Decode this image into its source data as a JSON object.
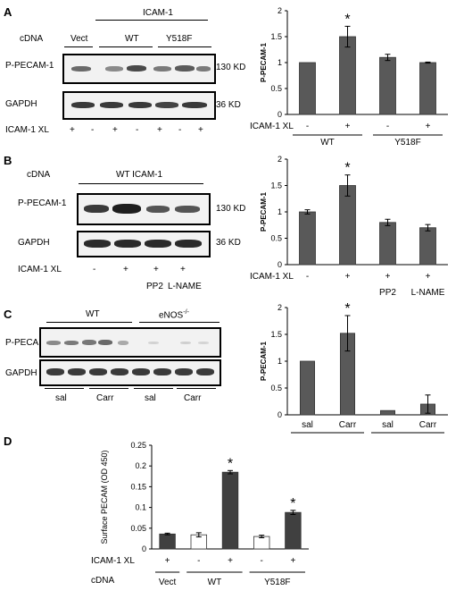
{
  "panels": {
    "A": {
      "letter": "A",
      "cdna_label": "cDNA",
      "icam_header": "ICAM-1",
      "groups": [
        "Vect",
        "WT",
        "Y518F"
      ],
      "rows": [
        "P-PECAM-1",
        "GAPDH"
      ],
      "sizes": [
        "130 KD",
        "36 KD"
      ],
      "xl_label": "ICAM-1 XL",
      "xl_signs": [
        "+",
        "-",
        "+",
        "-",
        "+",
        "-",
        "+"
      ]
    },
    "B": {
      "letter": "B",
      "cdna_label": "cDNA",
      "header": "WT ICAM-1",
      "rows": [
        "P-PECAM-1",
        "GAPDH"
      ],
      "sizes": [
        "130 KD",
        "36 KD"
      ],
      "xl_label": "ICAM-1 XL",
      "xl_signs": [
        "-",
        "+",
        "+",
        "+"
      ],
      "treatments": [
        "PP2",
        "L-NAME"
      ]
    },
    "C": {
      "letter": "C",
      "groups": [
        "WT",
        "eNOS"
      ],
      "superscript": "-/-",
      "rows": [
        "P-PECAM",
        "GAPDH"
      ],
      "lane_groups": [
        "sal",
        "Carr",
        "sal",
        "Carr"
      ]
    },
    "D": {
      "letter": "D"
    }
  },
  "chart_data": [
    {
      "id": "A",
      "type": "bar",
      "ylabel": "P-PECAM-1",
      "ylim": [
        0,
        2
      ],
      "yticks": [
        "0",
        "0.5",
        "1",
        "1.5",
        "2"
      ],
      "values": [
        1.0,
        1.5,
        1.1,
        1.0
      ],
      "errors": [
        0,
        0.2,
        0.06,
        0.01
      ],
      "significant": [
        false,
        true,
        false,
        false
      ],
      "xl_label": "ICAM-1 XL",
      "xl_signs": [
        "-",
        "+",
        "-",
        "+"
      ],
      "groups": [
        "WT",
        "Y518F"
      ],
      "bar_color": "#595959",
      "asterisk": "*"
    },
    {
      "id": "B",
      "type": "bar",
      "ylabel": "P-PECAM-1",
      "ylim": [
        0,
        2
      ],
      "yticks": [
        "0",
        "0.5",
        "1",
        "1.5",
        "2"
      ],
      "values": [
        1.0,
        1.5,
        0.8,
        0.7
      ],
      "errors": [
        0.04,
        0.2,
        0.06,
        0.06
      ],
      "significant": [
        false,
        true,
        false,
        false
      ],
      "xl_label": "ICAM-1 XL",
      "xl_signs": [
        "-",
        "+",
        "+",
        "+"
      ],
      "treatments": [
        "",
        "",
        "PP2",
        "L-NAME"
      ],
      "bar_color": "#595959",
      "asterisk": "*"
    },
    {
      "id": "C",
      "type": "bar",
      "ylabel": "P-PECAM-1",
      "ylim": [
        0,
        2
      ],
      "yticks": [
        "0",
        "0.5",
        "1",
        "1.5",
        "2"
      ],
      "categories": [
        "sal",
        "Carr",
        "sal",
        "Carr"
      ],
      "values": [
        1.0,
        1.52,
        0.08,
        0.2
      ],
      "errors": [
        0,
        0.33,
        0,
        0.17
      ],
      "significant": [
        false,
        true,
        false,
        false
      ],
      "groups": [
        "WT",
        "eNOS"
      ],
      "superscript": "-/-",
      "bar_color": "#595959",
      "asterisk": "*"
    },
    {
      "id": "D",
      "type": "bar",
      "ylabel": "Surface PECAM (OD 450)",
      "ylim": [
        0,
        0.25
      ],
      "yticks": [
        "0",
        "0.05",
        "0.1",
        "0.15",
        "0.2",
        "0.25"
      ],
      "values": [
        0.036,
        0.034,
        0.185,
        0.03,
        0.088
      ],
      "errors": [
        0.002,
        0.005,
        0.004,
        0.003,
        0.005
      ],
      "fills": [
        "#404040",
        "#ffffff",
        "#404040",
        "#ffffff",
        "#404040"
      ],
      "significant": [
        false,
        false,
        true,
        false,
        true
      ],
      "xl_label": "ICAM-1 XL",
      "xl_signs": [
        "+",
        "-",
        "+",
        "-",
        "+"
      ],
      "cdna_label": "cDNA",
      "groups": [
        "Vect",
        "WT",
        "Y518F"
      ],
      "asterisk": "*"
    }
  ]
}
